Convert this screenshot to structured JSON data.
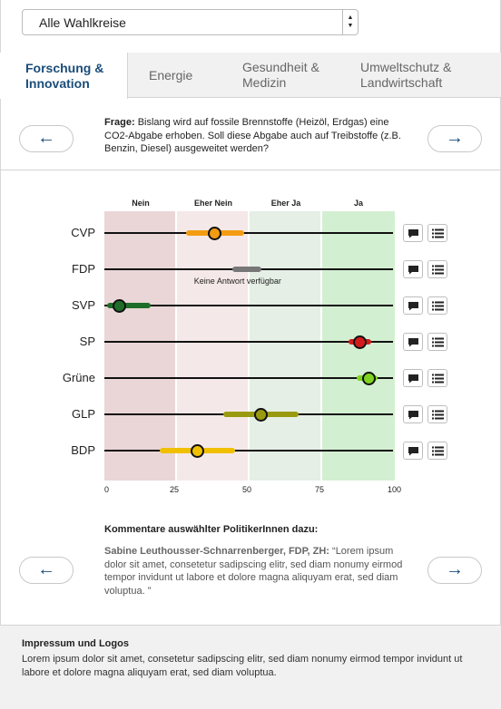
{
  "select": {
    "value": "Alle Wahlkreise"
  },
  "tabs": [
    {
      "label": "Forschung & Innovation",
      "active": true
    },
    {
      "label": "Energie",
      "active": false
    },
    {
      "label": "Gesundheit & Medizin",
      "active": false
    },
    {
      "label": "Umweltschutz & Landwirtschaft",
      "active": false
    }
  ],
  "question": {
    "prefix": "Frage:",
    "text": "Bislang wird auf fossile Brennstoffe (Heizöl, Erdgas) eine CO2-Abgabe erhoben. Soll diese Abgabe auch auf Treibstoffe (z.B. Benzin, Diesel) ausgeweitet werden?",
    "prev_icon": "←",
    "next_icon": "→"
  },
  "chart_data": {
    "type": "scatter",
    "categories": [
      "Nein",
      "Eher Nein",
      "Eher Ja",
      "Ja"
    ],
    "xlim": [
      0,
      100
    ],
    "xticks": [
      "0",
      "25",
      "50",
      "75",
      "100"
    ],
    "band_colors": [
      "#ead6d7",
      "#f5e8e8",
      "#e5efe5",
      "#d3efd1"
    ],
    "series": [
      {
        "name": "CVP",
        "mean": 38,
        "range": [
          28,
          48
        ],
        "color": "#f39c12"
      },
      {
        "name": "FDP",
        "mean": null,
        "range": [
          44,
          54
        ],
        "color": "#777777",
        "note": "Keine Antwort verfügbar"
      },
      {
        "name": "SVP",
        "mean": 5,
        "range": [
          1,
          16
        ],
        "color": "#1e6e2a"
      },
      {
        "name": "SP",
        "mean": 88,
        "range": [
          84,
          92
        ],
        "color": "#d41b1b"
      },
      {
        "name": "Grüne",
        "mean": 91,
        "range": [
          87,
          94
        ],
        "color": "#7ed321"
      },
      {
        "name": "GLP",
        "mean": 54,
        "range": [
          41,
          67
        ],
        "color": "#9a9a10"
      },
      {
        "name": "BDP",
        "mean": 32,
        "range": [
          19,
          45
        ],
        "color": "#f0c000"
      }
    ]
  },
  "comments": {
    "title": "Kommentare auswählter PolitikerInnen dazu:",
    "author": "Sabine Leuthousser-Schnarrenberger, FDP, ZH:",
    "text": "“Lorem ipsum dolor sit amet, consetetur sadipscing elitr, sed diam nonumy eirmod tempor invidunt ut labore et dolore magna aliquyam erat, sed diam voluptua. ”"
  },
  "footer": {
    "title": "Impressum und Logos",
    "text": "Lorem ipsum dolor sit amet, consetetur sadipscing elitr, sed diam nonumy eirmod tempor invidunt ut labore et dolore magna aliquyam erat, sed diam voluptua."
  }
}
